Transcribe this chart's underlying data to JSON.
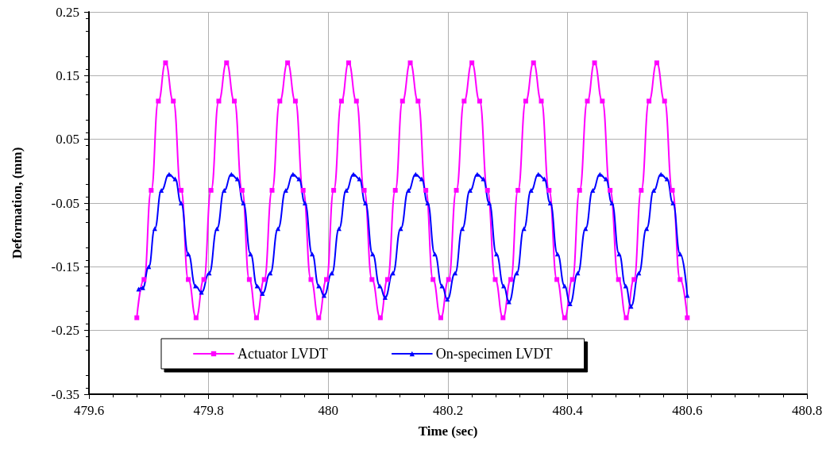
{
  "chart_data": {
    "type": "line",
    "xlabel": "Time (sec)",
    "ylabel": "Deformation, (mm)",
    "xlim": [
      479.6,
      480.8
    ],
    "xticks": [
      479.6,
      479.8,
      480,
      480.2,
      480.4,
      480.6,
      480.8
    ],
    "ylim": [
      -0.35,
      0.25
    ],
    "yticks": [
      -0.35,
      -0.25,
      -0.15,
      -0.05,
      0.05,
      0.15,
      0.25
    ],
    "grid": true,
    "legend": "bottom",
    "line_style": "solid",
    "series": [
      {
        "name": "Actuator LVDT",
        "color": "#ff00ff",
        "marker": "square",
        "x": [
          479.68,
          479.692,
          479.704,
          479.716,
          479.728,
          479.741,
          479.754,
          479.766,
          479.779,
          479.792,
          479.804,
          479.817,
          479.83,
          479.843,
          479.856,
          479.868,
          479.88,
          479.893,
          479.906,
          479.919,
          479.932,
          479.945,
          479.958,
          479.971,
          479.984,
          479.997,
          480.009,
          480.022,
          480.034,
          480.047,
          480.06,
          480.073,
          480.087,
          480.099,
          480.112,
          480.124,
          480.137,
          480.15,
          480.163,
          480.175,
          480.188,
          480.201,
          480.214,
          480.227,
          480.24,
          480.253,
          480.266,
          480.279,
          480.292,
          480.305,
          480.317,
          480.33,
          480.343,
          480.356,
          480.369,
          480.382,
          480.395,
          480.408,
          480.42,
          480.433,
          480.445,
          480.458,
          480.471,
          480.485,
          480.498,
          480.511,
          480.523,
          480.536,
          480.549,
          480.562,
          480.575,
          480.588,
          480.6
        ],
        "values": [
          -0.23,
          -0.17,
          -0.03,
          0.11,
          0.17,
          0.11,
          -0.03,
          -0.17,
          -0.23,
          -0.17,
          -0.03,
          0.11,
          0.17,
          0.11,
          -0.03,
          -0.17,
          -0.23,
          -0.17,
          -0.03,
          0.11,
          0.17,
          0.11,
          -0.03,
          -0.17,
          -0.23,
          -0.17,
          -0.03,
          0.11,
          0.17,
          0.11,
          -0.03,
          -0.17,
          -0.23,
          -0.17,
          -0.03,
          0.11,
          0.17,
          0.11,
          -0.03,
          -0.17,
          -0.23,
          -0.17,
          -0.03,
          0.11,
          0.17,
          0.11,
          -0.03,
          -0.17,
          -0.23,
          -0.17,
          -0.03,
          0.11,
          0.17,
          0.11,
          -0.03,
          -0.17,
          -0.23,
          -0.17,
          -0.03,
          0.11,
          0.17,
          0.11,
          -0.03,
          -0.17,
          -0.23,
          -0.17,
          -0.03,
          0.11,
          0.17,
          0.11,
          -0.03,
          -0.17,
          -0.23
        ]
      },
      {
        "name": "On-specimen LVDT",
        "color": "#0000ff",
        "marker": "triangle",
        "x": [
          479.683,
          479.69,
          479.7,
          479.71,
          479.721,
          479.734,
          479.744,
          479.754,
          479.766,
          479.778,
          479.788,
          479.801,
          479.814,
          479.826,
          479.838,
          479.848,
          479.858,
          479.87,
          479.881,
          479.89,
          479.903,
          479.916,
          479.929,
          479.941,
          479.951,
          479.961,
          479.973,
          479.984,
          479.993,
          480.006,
          480.018,
          480.03,
          480.042,
          480.052,
          480.062,
          480.074,
          480.086,
          480.095,
          480.108,
          480.121,
          480.134,
          480.146,
          480.156,
          480.166,
          480.178,
          480.19,
          480.199,
          480.212,
          480.224,
          480.237,
          480.249,
          480.259,
          480.269,
          480.281,
          480.293,
          480.302,
          480.315,
          480.327,
          480.339,
          480.351,
          480.361,
          480.371,
          480.383,
          480.395,
          480.404,
          480.417,
          480.43,
          480.442,
          480.454,
          480.464,
          480.474,
          480.486,
          480.497,
          480.506,
          480.519,
          480.532,
          480.544,
          480.556,
          480.566,
          480.576,
          480.588,
          480.6
        ],
        "values": [
          -0.185,
          -0.183,
          -0.15,
          -0.09,
          -0.03,
          -0.005,
          -0.012,
          -0.05,
          -0.13,
          -0.18,
          -0.19,
          -0.16,
          -0.09,
          -0.03,
          -0.005,
          -0.012,
          -0.05,
          -0.13,
          -0.18,
          -0.192,
          -0.16,
          -0.09,
          -0.03,
          -0.005,
          -0.012,
          -0.05,
          -0.13,
          -0.18,
          -0.195,
          -0.16,
          -0.09,
          -0.03,
          -0.005,
          -0.012,
          -0.05,
          -0.13,
          -0.18,
          -0.198,
          -0.16,
          -0.09,
          -0.03,
          -0.005,
          -0.012,
          -0.05,
          -0.13,
          -0.18,
          -0.201,
          -0.16,
          -0.09,
          -0.03,
          -0.005,
          -0.012,
          -0.05,
          -0.13,
          -0.18,
          -0.205,
          -0.16,
          -0.09,
          -0.03,
          -0.005,
          -0.012,
          -0.05,
          -0.13,
          -0.18,
          -0.208,
          -0.16,
          -0.09,
          -0.03,
          -0.005,
          -0.012,
          -0.05,
          -0.13,
          -0.18,
          -0.212,
          -0.16,
          -0.09,
          -0.03,
          -0.005,
          -0.012,
          -0.05,
          -0.13,
          -0.195
        ]
      }
    ]
  }
}
